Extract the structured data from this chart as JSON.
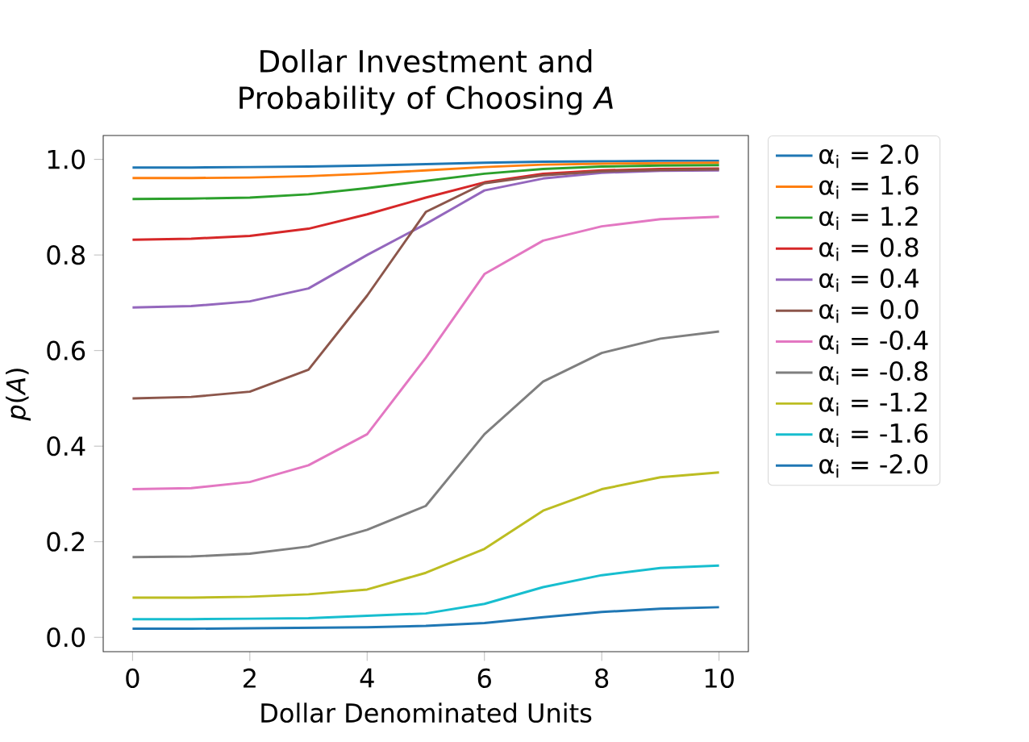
{
  "chart_data": {
    "type": "line",
    "title": "Dollar Investment and Probability of Choosing *A*",
    "xlabel": "Dollar Denominated Units",
    "ylabel": "*p*(*A*)",
    "x": [
      0,
      1,
      2,
      3,
      4,
      5,
      6,
      7,
      8,
      9,
      10
    ],
    "series": [
      {
        "name": "α$_{i}$ = 2.0",
        "color": "#1f77b4",
        "values": [
          0.983,
          0.983,
          0.984,
          0.985,
          0.987,
          0.99,
          0.993,
          0.995,
          0.996,
          0.997,
          0.997
        ]
      },
      {
        "name": "α$_{i}$ = 1.6",
        "color": "#ff7f0e",
        "values": [
          0.961,
          0.961,
          0.962,
          0.965,
          0.97,
          0.977,
          0.984,
          0.989,
          0.991,
          0.992,
          0.993
        ]
      },
      {
        "name": "α$_{i}$ = 1.2",
        "color": "#2ca02c",
        "values": [
          0.917,
          0.918,
          0.92,
          0.927,
          0.94,
          0.955,
          0.97,
          0.98,
          0.985,
          0.987,
          0.988
        ]
      },
      {
        "name": "α$_{i}$ = 0.8",
        "color": "#d62728",
        "values": [
          0.832,
          0.834,
          0.84,
          0.855,
          0.885,
          0.92,
          0.952,
          0.97,
          0.977,
          0.98,
          0.981
        ]
      },
      {
        "name": "α$_{i}$ = 0.4",
        "color": "#9467bd",
        "values": [
          0.69,
          0.693,
          0.703,
          0.73,
          0.8,
          0.865,
          0.935,
          0.96,
          0.972,
          0.976,
          0.977
        ]
      },
      {
        "name": "α$_{i}$ = 0.0",
        "color": "#8c564b",
        "values": [
          0.5,
          0.503,
          0.514,
          0.56,
          0.715,
          0.89,
          0.95,
          0.967,
          0.975,
          0.978,
          0.979
        ]
      },
      {
        "name": "α$_{i}$ = -0.4",
        "color": "#e377c2",
        "values": [
          0.31,
          0.312,
          0.325,
          0.36,
          0.425,
          0.585,
          0.76,
          0.83,
          0.86,
          0.875,
          0.88
        ]
      },
      {
        "name": "α$_{i}$ = -0.8",
        "color": "#7f7f7f",
        "values": [
          0.168,
          0.169,
          0.175,
          0.19,
          0.225,
          0.275,
          0.425,
          0.535,
          0.595,
          0.625,
          0.64
        ]
      },
      {
        "name": "α$_{i}$ = -1.2",
        "color": "#bcbd22",
        "values": [
          0.083,
          0.083,
          0.085,
          0.09,
          0.1,
          0.135,
          0.185,
          0.265,
          0.31,
          0.335,
          0.345
        ]
      },
      {
        "name": "α$_{i}$ = -1.6",
        "color": "#17becf",
        "values": [
          0.038,
          0.038,
          0.039,
          0.04,
          0.045,
          0.05,
          0.07,
          0.105,
          0.13,
          0.145,
          0.15
        ]
      },
      {
        "name": "α$_{i}$ = -2.0",
        "color": "#1f77b4",
        "values": [
          0.018,
          0.018,
          0.019,
          0.02,
          0.021,
          0.024,
          0.03,
          0.042,
          0.053,
          0.06,
          0.063
        ]
      }
    ],
    "xlim": [
      -0.5,
      10.5
    ],
    "xticks": [
      0,
      2,
      4,
      6,
      8,
      10
    ],
    "ylim": [
      -0.03,
      1.05
    ],
    "yticks": [
      {
        "value": 0,
        "label": "0.0"
      },
      0.2,
      0.4,
      0.6,
      0.8,
      {
        "value": 1,
        "label": "1.0"
      }
    ],
    "legend": "right",
    "grid": false,
    "marker": "none",
    "line_style": "solid"
  }
}
